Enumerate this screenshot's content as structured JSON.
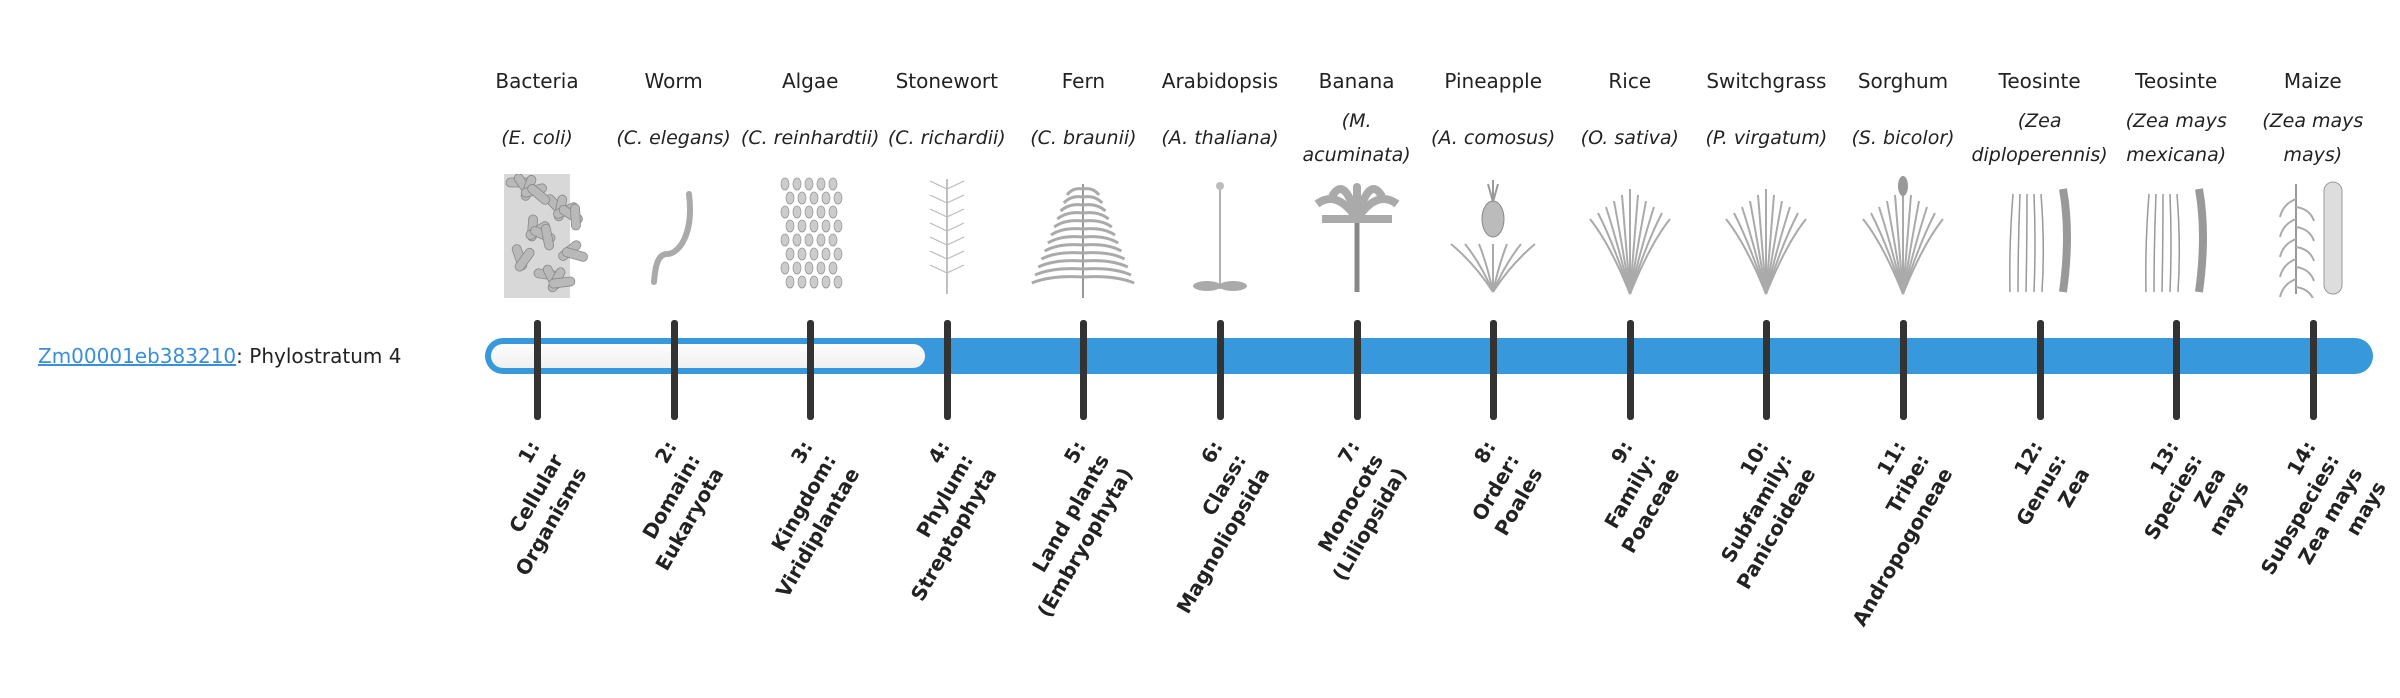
{
  "gene": {
    "id": "Zm00001eb383210",
    "suffix": ": Phylostratum 4",
    "phylostratum": 4,
    "total_strata": 14
  },
  "colors": {
    "bar": "#3798db",
    "link": "#3a8fd8",
    "tick": "#333333"
  },
  "organisms": [
    {
      "common": "Bacteria",
      "sci": "(E. coli)",
      "icon": "bacteria-icon",
      "stratum": [
        "1:",
        "Cellular",
        "Organisms"
      ]
    },
    {
      "common": "Worm",
      "sci": "(C. elegans)",
      "icon": "worm-icon",
      "stratum": [
        "2:",
        "Domain:",
        "Eukaryota"
      ]
    },
    {
      "common": "Algae",
      "sci": "(C. reinhardtii)",
      "icon": "algae-icon",
      "stratum": [
        "3:",
        "Kingdom:",
        "Viridiplantae"
      ]
    },
    {
      "common": "Stonewort",
      "sci": "(C. richardii)",
      "icon": "stonewort-icon",
      "stratum": [
        "4:",
        "Phylum:",
        "Streptophyta"
      ]
    },
    {
      "common": "Fern",
      "sci": "(C. braunii)",
      "icon": "fern-icon",
      "stratum": [
        "5:",
        "Land plants",
        "(Embryophyta)"
      ]
    },
    {
      "common": "Arabidopsis",
      "sci": "(A. thaliana)",
      "icon": "arabidopsis-icon",
      "stratum": [
        "6:",
        "Class:",
        "Magnoliopsida"
      ]
    },
    {
      "common": "Banana",
      "sci": "(M. acuminata)",
      "icon": "banana-plant-icon",
      "stratum": [
        "7:",
        "Monocots",
        "(Liliopsida)"
      ]
    },
    {
      "common": "Pineapple",
      "sci": "(A. comosus)",
      "icon": "pineapple-icon",
      "stratum": [
        "8:",
        "Order:",
        "Poales"
      ]
    },
    {
      "common": "Rice",
      "sci": "(O. sativa)",
      "icon": "rice-icon",
      "stratum": [
        "9:",
        "Family:",
        "Poaceae"
      ]
    },
    {
      "common": "Switchgrass",
      "sci": "(P. virgatum)",
      "icon": "switchgrass-icon",
      "stratum": [
        "10:",
        "Subfamily:",
        "Panicoideae"
      ]
    },
    {
      "common": "Sorghum",
      "sci": "(S. bicolor)",
      "icon": "sorghum-icon",
      "stratum": [
        "11:",
        "Tribe:",
        "Andropogoneae"
      ]
    },
    {
      "common": "Teosinte",
      "sci": "(Zea diploperennis)",
      "icon": "teosinte-icon",
      "stratum": [
        "12:",
        "Genus:",
        "Zea"
      ]
    },
    {
      "common": "Teosinte",
      "sci": "(Zea mays mexicana)",
      "icon": "teosinte-icon",
      "stratum": [
        "13:",
        "Species:",
        "Zea",
        "mays"
      ]
    },
    {
      "common": "Maize",
      "sci": "(Zea mays mays)",
      "icon": "maize-icon",
      "stratum": [
        "14:",
        "Subspecies:",
        "Zea mays",
        "mays"
      ]
    }
  ]
}
